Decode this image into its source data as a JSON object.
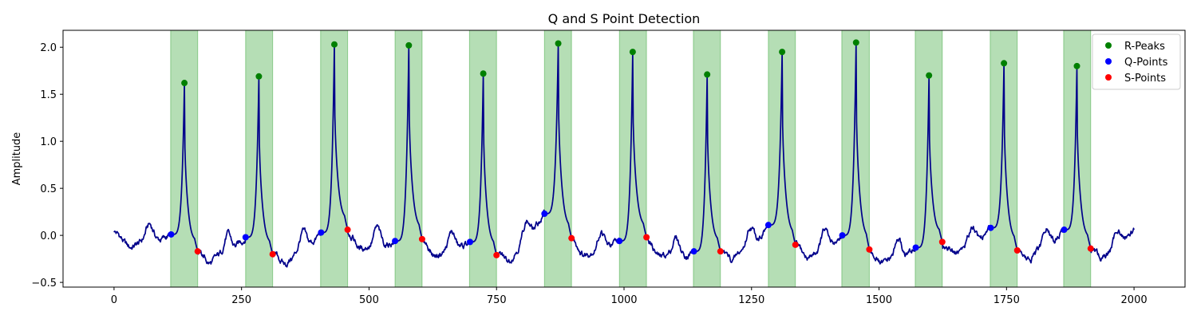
{
  "chart_data": {
    "type": "line",
    "title": "Q and S Point Detection",
    "xlabel": "",
    "ylabel": "Amplitude",
    "xlim": [
      -100,
      2100
    ],
    "ylim": [
      -0.55,
      2.18
    ],
    "xticks": [
      0,
      250,
      500,
      750,
      1000,
      1250,
      1500,
      1750,
      2000
    ],
    "yticks": [
      -0.5,
      0.0,
      0.5,
      1.0,
      1.5,
      2.0
    ],
    "ytick_labels": [
      "−0.5",
      "0.0",
      "0.5",
      "1.0",
      "1.5",
      "2.0"
    ],
    "grid": false,
    "legend_position": "upper right",
    "colors": {
      "signal": "#00008b",
      "r_peaks": "#008000",
      "q_points": "#0000ff",
      "s_points": "#ff0000",
      "regions": "#2ca02c"
    },
    "qrs_regions": [
      [
        111,
        164
      ],
      [
        258,
        311
      ],
      [
        405,
        458
      ],
      [
        551,
        604
      ],
      [
        697,
        750
      ],
      [
        844,
        897
      ],
      [
        991,
        1044
      ],
      [
        1136,
        1189
      ],
      [
        1283,
        1336
      ],
      [
        1427,
        1481
      ],
      [
        1571,
        1624
      ],
      [
        1718,
        1771
      ],
      [
        1862,
        1915
      ]
    ],
    "series": [
      {
        "name": "R-Peaks",
        "marker": "o",
        "x": [
          138,
          284,
          432,
          578,
          724,
          871,
          1017,
          1163,
          1310,
          1455,
          1598,
          1745,
          1888
        ],
        "y": [
          1.62,
          1.69,
          2.03,
          2.02,
          1.72,
          2.04,
          1.95,
          1.71,
          1.95,
          2.05,
          1.7,
          1.83,
          1.8
        ]
      },
      {
        "name": "Q-Points",
        "marker": "o",
        "x": [
          112,
          258,
          406,
          551,
          698,
          844,
          991,
          1137,
          1283,
          1428,
          1572,
          1719,
          1863
        ],
        "y": [
          0.01,
          -0.02,
          0.03,
          -0.06,
          -0.07,
          0.23,
          -0.06,
          -0.17,
          0.11,
          0.0,
          -0.13,
          0.08,
          0.06
        ]
      },
      {
        "name": "S-Points",
        "marker": "o",
        "x": [
          164,
          311,
          458,
          604,
          750,
          897,
          1044,
          1189,
          1336,
          1481,
          1624,
          1771,
          1915
        ],
        "y": [
          -0.17,
          -0.2,
          0.06,
          -0.04,
          -0.21,
          -0.03,
          -0.02,
          -0.17,
          -0.1,
          -0.15,
          -0.07,
          -0.16,
          -0.14
        ]
      }
    ]
  }
}
